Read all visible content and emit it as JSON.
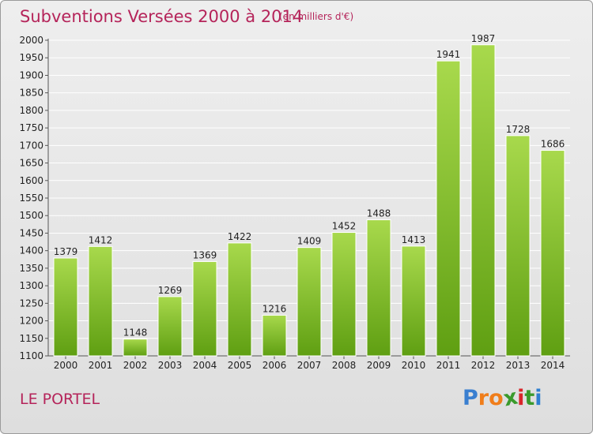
{
  "title": "Subventions Versées 2000 à 2014",
  "subtitle": "(en milliers d'€)",
  "commune": "LE PORTEL",
  "brand": {
    "letters": [
      "P",
      "r",
      "o",
      "x",
      "i",
      "t",
      "i"
    ],
    "colors": [
      "#3a7fd0",
      "#f07d1a",
      "#f07d1a",
      "#3a9a2c",
      "#d9262b",
      "#3a9a2c",
      "#2f7fd0"
    ]
  },
  "colors": {
    "title": "#b5245a",
    "bar_light": "#a8d94c",
    "bar_dark": "#5f9f12",
    "grid": "#ffffff",
    "axis_text": "#222222"
  },
  "chart_data": {
    "type": "bar",
    "categories": [
      "2000",
      "2001",
      "2002",
      "2003",
      "2004",
      "2005",
      "2006",
      "2007",
      "2008",
      "2009",
      "2010",
      "2011",
      "2012",
      "2013",
      "2014"
    ],
    "values": [
      1379,
      1412,
      1148,
      1269,
      1369,
      1422,
      1216,
      1409,
      1452,
      1488,
      1413,
      1941,
      1987,
      1728,
      1686
    ],
    "ylim": [
      1100,
      2000
    ],
    "ytick_step": 50,
    "yticks": [
      "1100",
      "1150",
      "1200",
      "1250",
      "1300",
      "1350",
      "1400",
      "1450",
      "1500",
      "1550",
      "1600",
      "1650",
      "1700",
      "1750",
      "1800",
      "1850",
      "1900",
      "1950",
      "2000"
    ],
    "xlabel": "",
    "ylabel": "",
    "grid": true,
    "legend": "none"
  }
}
